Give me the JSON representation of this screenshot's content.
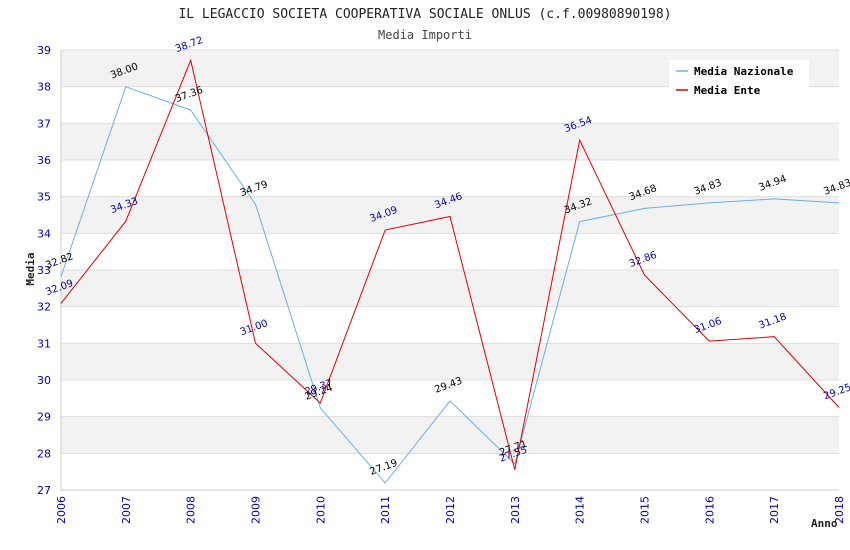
{
  "chart_data": {
    "type": "line",
    "title": "IL LEGACCIO SOCIETA COOPERATIVA SOCIALE ONLUS (c.f.00980890198)",
    "subtitle": "Media Importi",
    "xlabel": "Anno",
    "ylabel": "Media",
    "categories": [
      "2006",
      "2007",
      "2008",
      "2009",
      "2010",
      "2011",
      "2012",
      "2013",
      "2014",
      "2015",
      "2016",
      "2017",
      "2018"
    ],
    "ylim": [
      27,
      39
    ],
    "yticks": [
      "27",
      "28",
      "29",
      "30",
      "31",
      "32",
      "33",
      "34",
      "35",
      "36",
      "37",
      "38",
      "39"
    ],
    "grid": true,
    "legend_position": "top-right",
    "series": [
      {
        "name": "Media Nazionale",
        "color": "#6aaee8",
        "label_color": "#000000",
        "values": [
          32.82,
          38.0,
          37.36,
          34.79,
          29.24,
          27.19,
          29.43,
          27.71,
          34.32,
          34.68,
          34.83,
          34.94,
          34.83
        ],
        "labels": [
          "32.82",
          "38.00",
          "37.36",
          "34.79",
          "29.24",
          "27.19",
          "29.43",
          "27.71",
          "34.32",
          "34.68",
          "34.83",
          "34.94",
          "34.83"
        ]
      },
      {
        "name": "Media Ente",
        "color": "#e00000",
        "label_color": "#0000aa",
        "values": [
          32.09,
          34.33,
          38.72,
          31.0,
          29.37,
          34.09,
          34.46,
          27.55,
          36.54,
          32.86,
          31.06,
          31.18,
          29.25
        ],
        "labels": [
          "32.09",
          "34.33",
          "38.72",
          "31.00",
          "29.37",
          "34.09",
          "34.46",
          "27.55",
          "36.54",
          "32.86",
          "31.06",
          "31.18",
          "29.25"
        ]
      }
    ]
  }
}
